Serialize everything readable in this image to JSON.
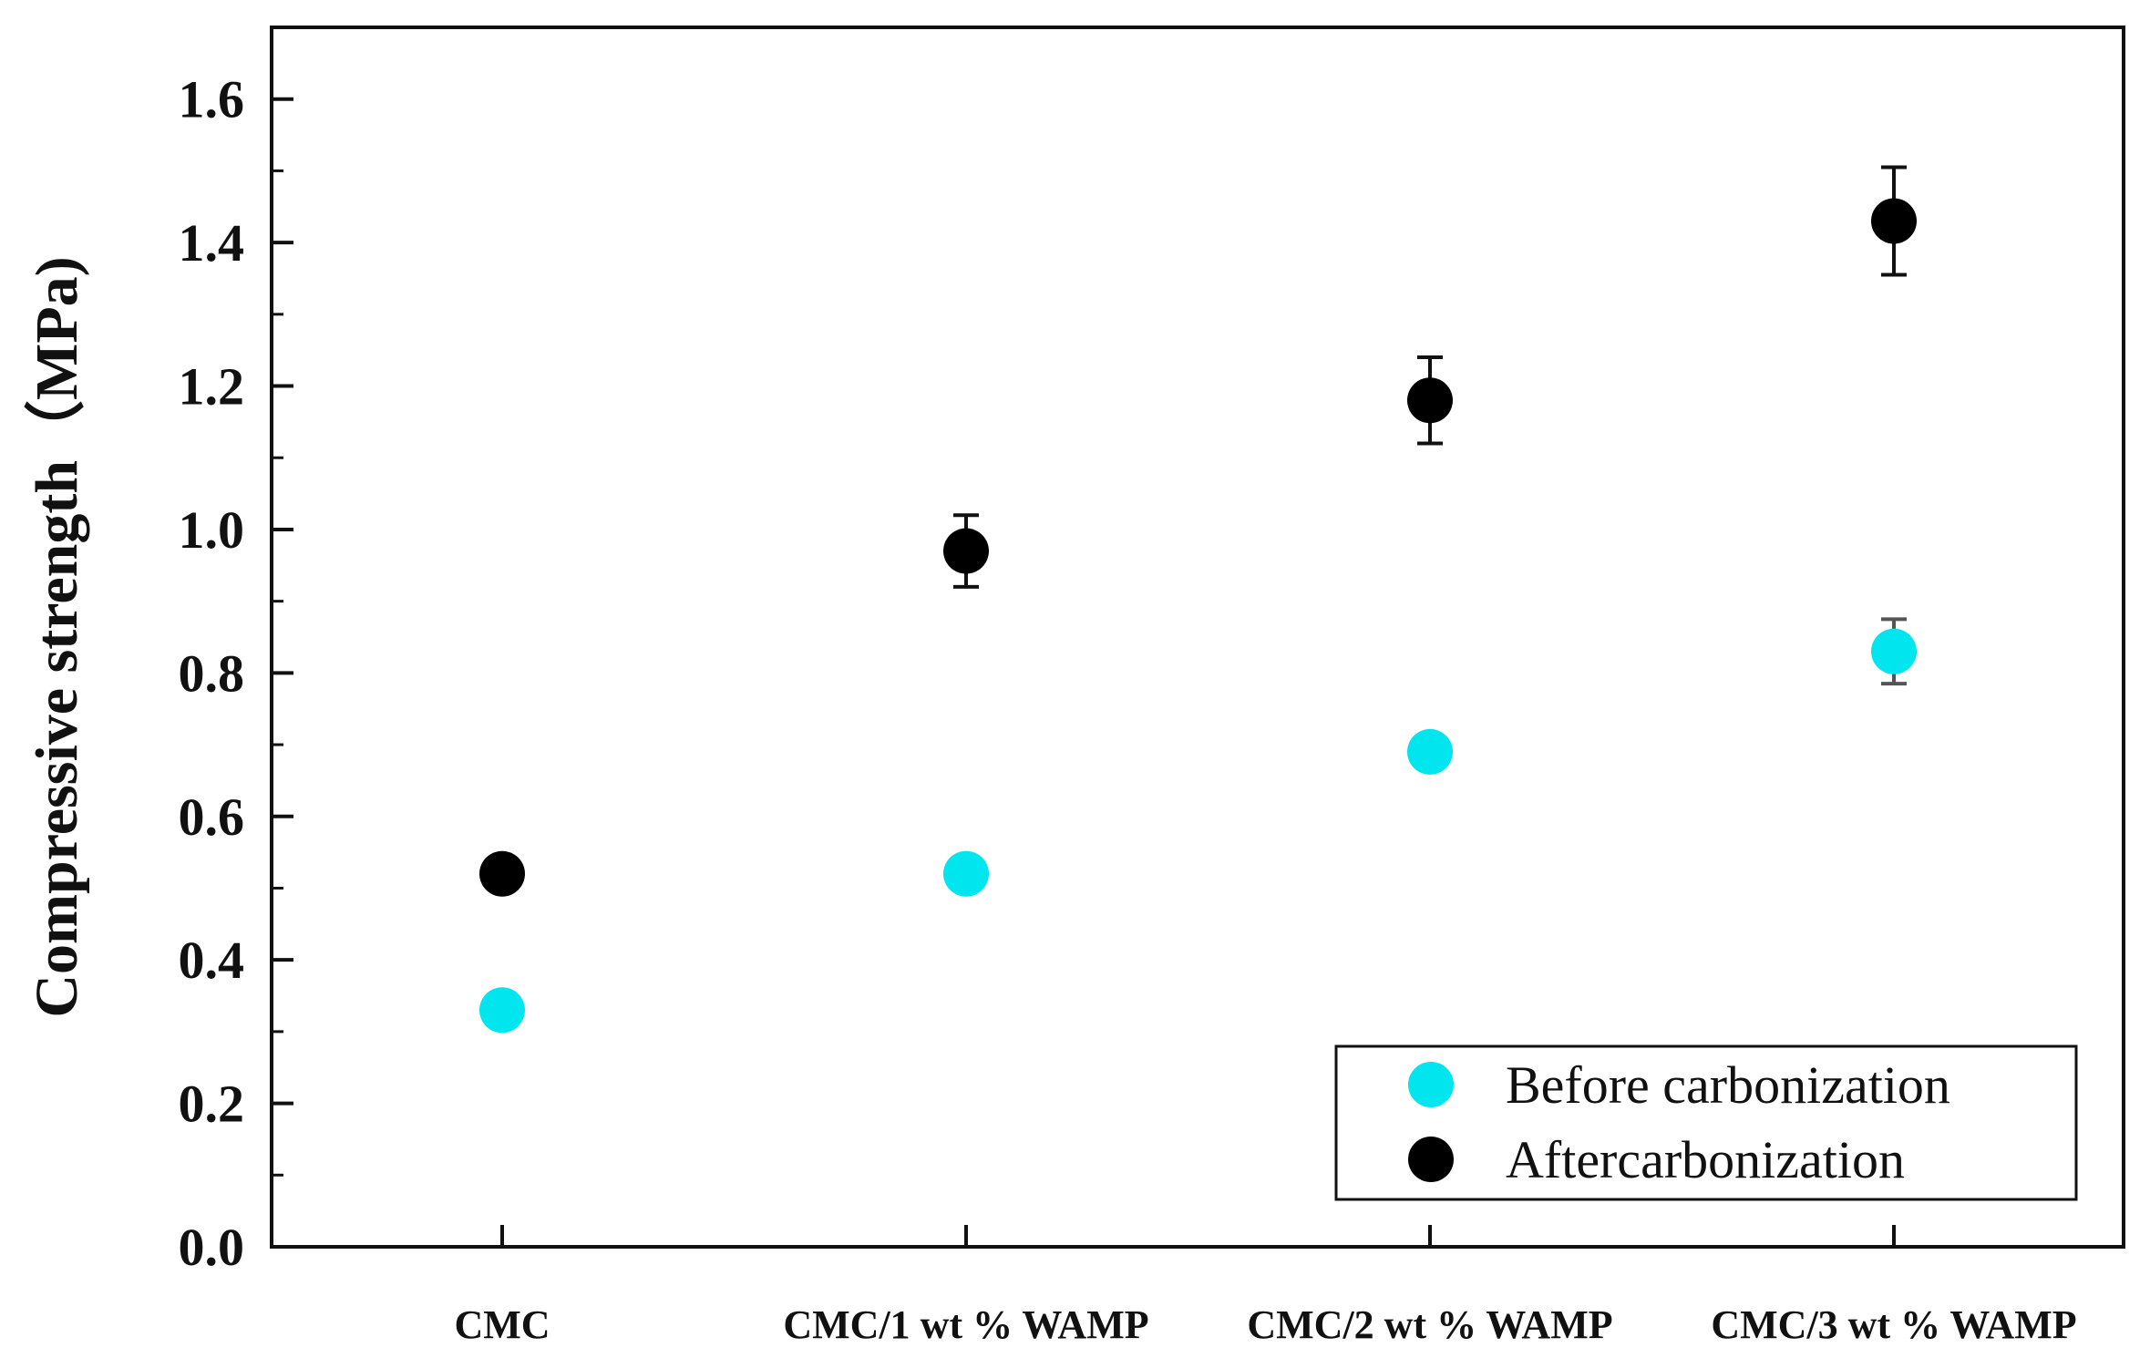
{
  "chart_data": {
    "type": "scatter",
    "ylabel": "Compressive strength（MPa)",
    "xlabel": "",
    "ylim": [
      0.0,
      1.7
    ],
    "yticks": [
      "0.0",
      "0.2",
      "0.4",
      "0.6",
      "0.8",
      "1.0",
      "1.2",
      "1.4",
      "1.6"
    ],
    "categories": [
      "CMC",
      "CMC/1 wt %  WAMP",
      "CMC/2 wt %  WAMP",
      "CMC/3 wt %  WAMP"
    ],
    "series": [
      {
        "name": "Before carbonization",
        "color": "#00e5ee",
        "values": [
          0.33,
          0.52,
          0.69,
          0.83
        ],
        "errors": [
          0.0,
          0.0,
          0.0,
          0.045
        ]
      },
      {
        "name": "Aftercarbonization",
        "color": "#000000",
        "values": [
          0.52,
          0.97,
          1.18,
          1.43
        ],
        "errors": [
          0.0,
          0.05,
          0.06,
          0.075
        ]
      }
    ],
    "legend_position": "bottom-right",
    "grid": false
  }
}
